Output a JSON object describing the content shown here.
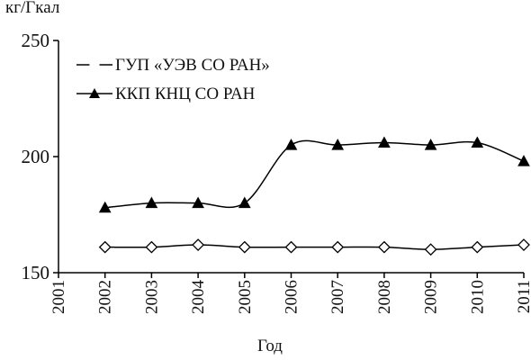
{
  "chart_data": {
    "type": "line",
    "y_label": "кг/Гкал",
    "x_label": "Год",
    "x": [
      2002,
      2003,
      2004,
      2005,
      2006,
      2007,
      2008,
      2009,
      2010,
      2011
    ],
    "series": [
      {
        "name": "ГУП «УЭВ СО РАН»",
        "color": "#000000",
        "marker": "diamond",
        "values": [
          161,
          161,
          162,
          161,
          161,
          161,
          161,
          160,
          161,
          162
        ]
      },
      {
        "name": "ККП КНЦ СО РАН",
        "color": "#000000",
        "marker": "triangle",
        "values": [
          178,
          180,
          180,
          180,
          205,
          205,
          206,
          205,
          206,
          198
        ]
      }
    ],
    "xlim": [
      2001,
      2011
    ],
    "xticks": [
      2001,
      2002,
      2003,
      2004,
      2005,
      2006,
      2007,
      2008,
      2009,
      2010,
      2011
    ],
    "ylim": [
      150,
      250
    ],
    "yticks": [
      150,
      200,
      250
    ],
    "smooth": true,
    "grid": false,
    "legend": "upper left"
  }
}
